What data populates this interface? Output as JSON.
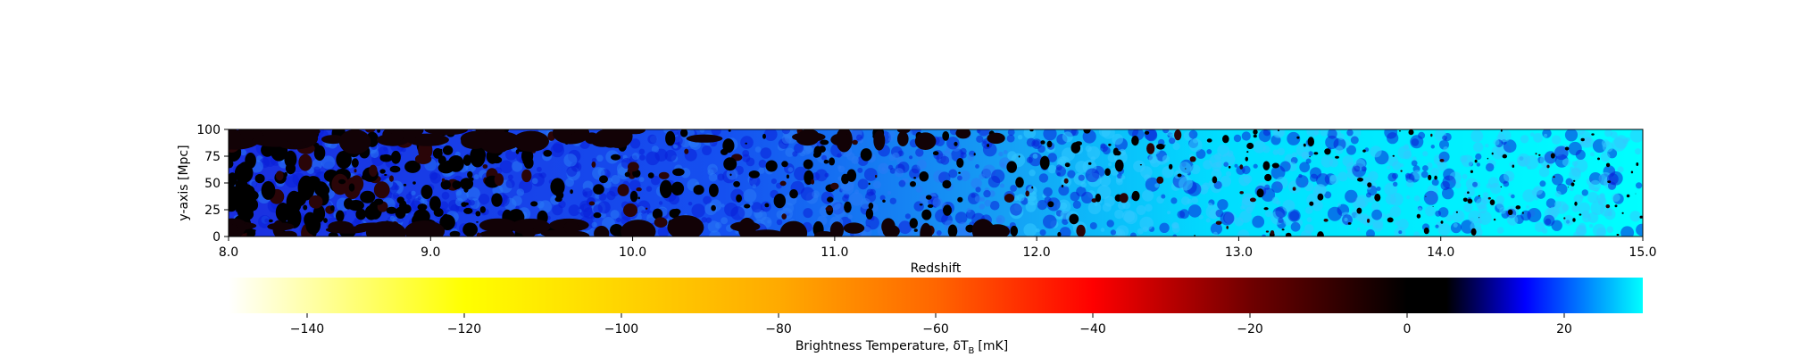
{
  "chart_data": [
    {
      "type": "heatmap",
      "title": "",
      "xlabel": "Redshift",
      "ylabel": "y-axis [Mpc]",
      "xlim": [
        8.0,
        15.0
      ],
      "ylim": [
        0,
        100
      ],
      "x_ticks": [
        8.0,
        9.0,
        10.0,
        11.0,
        12.0,
        13.0,
        14.0,
        15.0
      ],
      "x_tick_labels": [
        "8.0",
        "9.0",
        "10.0",
        "11.0",
        "12.0",
        "13.0",
        "14.0",
        "15.0"
      ],
      "y_ticks": [
        0,
        25,
        50,
        75,
        100
      ],
      "y_tick_labels": [
        "0",
        "25",
        "50",
        "75",
        "100"
      ],
      "description_of_field": {
        "low_redshift_end": "mostly blue (~15-20 mK) with many black/dark ionized bubbles (~0 to -5 mK)",
        "high_redshift_end": "mostly cyan (~25-30 mK) with few small dark bubbles"
      },
      "value_range": [
        -150,
        30
      ]
    },
    {
      "type": "colorbar",
      "label": "Brightness Temperature, δT",
      "label_subscript": "B",
      "label_unit": "[mK]",
      "vmin": -150,
      "vmax": 30,
      "ticks": [
        -140,
        -120,
        -100,
        -80,
        -60,
        -40,
        -20,
        0,
        20
      ],
      "tick_labels": [
        "−140",
        "−120",
        "−100",
        "−80",
        "−60",
        "−40",
        "−20",
        "0",
        "20"
      ],
      "colormap_stops": [
        {
          "value": -150,
          "color": "#ffffff"
        },
        {
          "value": -120,
          "color": "#ffff00"
        },
        {
          "value": -80,
          "color": "#ffaa00"
        },
        {
          "value": -60,
          "color": "#ff6600"
        },
        {
          "value": -40,
          "color": "#ff0000"
        },
        {
          "value": -20,
          "color": "#700000"
        },
        {
          "value": 0,
          "color": "#000000"
        },
        {
          "value": 5,
          "color": "#000000"
        },
        {
          "value": 15,
          "color": "#0000ff"
        },
        {
          "value": 30,
          "color": "#00ffff"
        }
      ]
    }
  ]
}
